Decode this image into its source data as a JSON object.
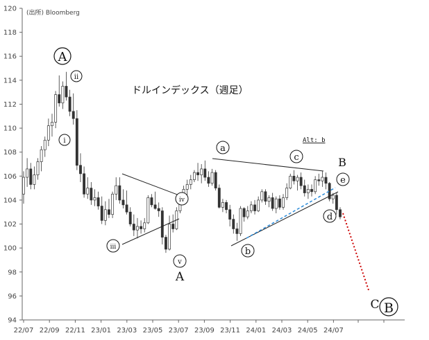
{
  "source": "(出所) Bloomberg",
  "chart_data": {
    "type": "candlestick",
    "title": "ドルインデックス（週足）",
    "ylim": [
      94,
      120
    ],
    "y_ticks": [
      "94",
      "96",
      "98",
      "100",
      "102",
      "104",
      "106",
      "108",
      "110",
      "112",
      "114",
      "116",
      "118",
      "120"
    ],
    "x_ticks": [
      "22/07",
      "22/09",
      "22/11",
      "23/01",
      "23/03",
      "23/05",
      "23/07",
      "23/09",
      "23/11",
      "24/01",
      "24/03",
      "24/05",
      "24/07"
    ],
    "grid": false,
    "x_range_weeks": [
      0,
      134
    ],
    "ohlc": [
      [
        104.5,
        106.4,
        103.7,
        105.9
      ],
      [
        105.9,
        107.5,
        105.1,
        106.6
      ],
      [
        106.6,
        107.1,
        104.9,
        105.3
      ],
      [
        105.3,
        106.8,
        104.9,
        106.1
      ],
      [
        106.1,
        107.5,
        105.7,
        107.2
      ],
      [
        107.2,
        108.5,
        106.4,
        108.2
      ],
      [
        108.2,
        109.3,
        107.6,
        109.0
      ],
      [
        109.0,
        110.8,
        108.5,
        110.2
      ],
      [
        110.2,
        111.2,
        109.3,
        110.5
      ],
      [
        110.5,
        113.1,
        110.0,
        112.8
      ],
      [
        112.8,
        114.4,
        111.8,
        112.1
      ],
      [
        112.1,
        113.9,
        111.6,
        113.5
      ],
      [
        113.5,
        114.7,
        112.3,
        112.6
      ],
      [
        112.6,
        113.2,
        111.0,
        111.4
      ],
      [
        111.4,
        112.9,
        110.3,
        110.8
      ],
      [
        110.8,
        111.5,
        106.5,
        106.9
      ],
      [
        106.9,
        107.9,
        105.5,
        106.2
      ],
      [
        106.2,
        106.8,
        104.2,
        104.5
      ],
      [
        104.5,
        105.9,
        104.1,
        105.0
      ],
      [
        105.0,
        105.5,
        103.6,
        104.0
      ],
      [
        104.0,
        104.9,
        103.5,
        104.2
      ],
      [
        104.2,
        104.7,
        103.2,
        103.5
      ],
      [
        103.5,
        104.3,
        102.0,
        102.3
      ],
      [
        102.3,
        103.9,
        101.9,
        103.2
      ],
      [
        103.2,
        104.1,
        102.5,
        102.8
      ],
      [
        102.8,
        104.7,
        102.5,
        104.5
      ],
      [
        104.5,
        105.9,
        104.0,
        105.2
      ],
      [
        105.2,
        105.9,
        103.7,
        104.0
      ],
      [
        104.0,
        104.9,
        103.3,
        103.6
      ],
      [
        103.6,
        104.8,
        102.8,
        103.0
      ],
      [
        103.0,
        103.4,
        101.8,
        102.0
      ],
      [
        102.0,
        102.8,
        101.0,
        101.5
      ],
      [
        101.5,
        102.5,
        100.8,
        101.8
      ],
      [
        101.8,
        102.3,
        101.2,
        101.6
      ],
      [
        101.6,
        102.5,
        101.3,
        102.1
      ],
      [
        102.1,
        104.4,
        102.0,
        104.2
      ],
      [
        104.2,
        104.5,
        103.4,
        103.6
      ],
      [
        103.6,
        104.7,
        103.2,
        103.3
      ],
      [
        103.3,
        103.8,
        102.6,
        103.1
      ],
      [
        103.1,
        103.4,
        100.3,
        100.9
      ],
      [
        100.9,
        101.1,
        99.6,
        99.9
      ],
      [
        99.9,
        102.7,
        99.8,
        102.0
      ],
      [
        102.0,
        102.8,
        101.3,
        101.6
      ],
      [
        101.6,
        103.4,
        101.5,
        103.1
      ],
      [
        103.1,
        104.2,
        102.9,
        104.0
      ],
      [
        104.0,
        105.2,
        103.7,
        104.9
      ],
      [
        104.9,
        105.7,
        104.4,
        105.3
      ],
      [
        105.3,
        106.1,
        104.9,
        105.7
      ],
      [
        105.7,
        106.5,
        105.5,
        106.3
      ],
      [
        106.3,
        107.1,
        105.6,
        106.1
      ],
      [
        106.1,
        107.0,
        105.4,
        106.6
      ],
      [
        106.6,
        107.3,
        105.6,
        105.9
      ],
      [
        105.9,
        106.4,
        105.1,
        105.4
      ],
      [
        105.4,
        106.6,
        105.2,
        106.3
      ],
      [
        106.3,
        106.5,
        104.8,
        105.0
      ],
      [
        105.0,
        105.3,
        103.3,
        103.4
      ],
      [
        103.4,
        104.1,
        103.0,
        103.8
      ],
      [
        103.8,
        104.0,
        102.9,
        103.2
      ],
      [
        103.2,
        103.6,
        101.8,
        102.4
      ],
      [
        102.4,
        102.8,
        101.2,
        101.6
      ],
      [
        101.6,
        102.1,
        100.6,
        101.2
      ],
      [
        101.2,
        103.5,
        101.0,
        103.3
      ],
      [
        103.3,
        103.4,
        102.2,
        102.6
      ],
      [
        102.6,
        103.5,
        102.4,
        103.1
      ],
      [
        103.1,
        103.9,
        102.9,
        103.6
      ],
      [
        103.6,
        104.0,
        102.8,
        103.1
      ],
      [
        103.1,
        104.3,
        103.0,
        104.0
      ],
      [
        104.0,
        104.9,
        103.8,
        104.7
      ],
      [
        104.7,
        104.9,
        103.6,
        103.9
      ],
      [
        103.9,
        104.4,
        103.4,
        104.2
      ],
      [
        104.2,
        104.6,
        103.1,
        103.3
      ],
      [
        103.3,
        104.3,
        102.9,
        104.1
      ],
      [
        104.1,
        104.4,
        103.2,
        103.4
      ],
      [
        103.4,
        104.5,
        103.2,
        104.2
      ],
      [
        104.2,
        105.4,
        104.0,
        105.0
      ],
      [
        105.0,
        106.2,
        104.9,
        106.0
      ],
      [
        106.0,
        106.5,
        105.3,
        105.6
      ],
      [
        105.6,
        106.1,
        104.8,
        105.9
      ],
      [
        105.9,
        106.3,
        104.9,
        105.2
      ],
      [
        105.2,
        105.7,
        104.3,
        104.6
      ],
      [
        104.6,
        105.3,
        104.1,
        104.9
      ],
      [
        104.9,
        105.3,
        104.3,
        104.7
      ],
      [
        104.7,
        106.0,
        104.5,
        105.7
      ],
      [
        105.7,
        106.2,
        105.2,
        105.6
      ],
      [
        105.6,
        106.4,
        105.1,
        105.9
      ],
      [
        105.9,
        106.3,
        104.9,
        105.4
      ],
      [
        105.4,
        105.5,
        103.9,
        104.1
      ],
      [
        104.1,
        104.6,
        103.7,
        104.4
      ],
      [
        104.4,
        104.6,
        102.8,
        103.2
      ],
      [
        103.2,
        103.4,
        102.4,
        102.6
      ]
    ],
    "annotations": {
      "wave_A_top": "A",
      "ii": "ii",
      "i": "i",
      "iii": "iii",
      "iv": "iv",
      "v": "v",
      "A": "A",
      "a": "a",
      "b": "b",
      "c": "c",
      "d": "d",
      "e": "e",
      "B": "B",
      "alt_b": "Alt: b",
      "C": "C",
      "wave_B_big": "B"
    }
  }
}
